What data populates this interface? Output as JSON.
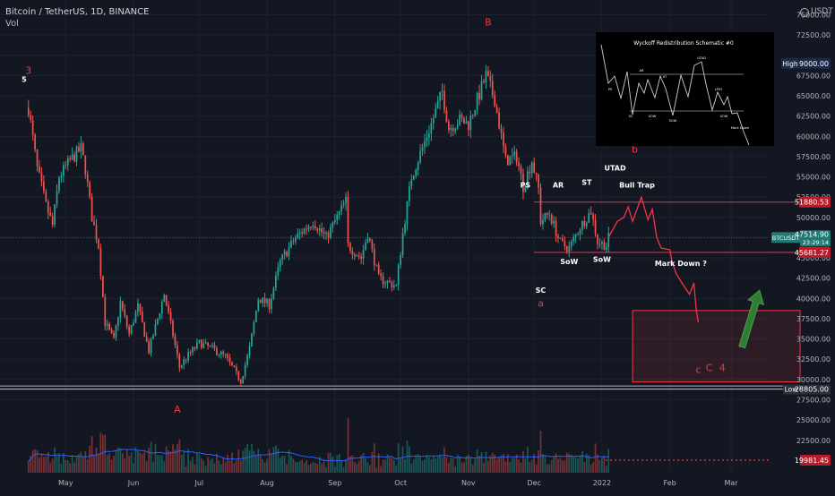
{
  "header": {
    "symbol_title": "Bitcoin / TetherUS, 1D, BINANCE",
    "vol_label": "Vol",
    "currency": "USDT"
  },
  "colors": {
    "background": "#131722",
    "grid": "#1e2230",
    "up": "#26a69a",
    "down": "#ef5350",
    "annotation_red": "#f23645",
    "box_fill": "rgba(242,54,69,0.12)",
    "arrow_green": "#2e7d32",
    "ma_line": "#2962ff",
    "axis_text": "#b2b5be"
  },
  "chart_data": {
    "type": "candlestick",
    "x_axis": {
      "ticks": [
        {
          "date": "2021-05-01",
          "label": "May"
        },
        {
          "date": "2021-06-01",
          "label": "Jun"
        },
        {
          "date": "2021-07-01",
          "label": "Jul"
        },
        {
          "date": "2021-08-01",
          "label": "Aug"
        },
        {
          "date": "2021-09-01",
          "label": "Sep"
        },
        {
          "date": "2021-10-01",
          "label": "Oct"
        },
        {
          "date": "2021-11-01",
          "label": "Nov"
        },
        {
          "date": "2021-12-01",
          "label": "Dec"
        },
        {
          "date": "2022-01-01",
          "label": "2022"
        },
        {
          "date": "2022-02-01",
          "label": "Feb"
        },
        {
          "date": "2022-03-01",
          "label": "Mar"
        }
      ]
    },
    "y_axis": {
      "ticks": [
        25000,
        27500,
        30000,
        32500,
        35000,
        37500,
        40000,
        42500,
        45000,
        47500,
        50000,
        52500,
        55000,
        57500,
        60000,
        62500,
        65000,
        67500,
        70000,
        72500,
        75000
      ],
      "tick_labels": [
        "25000.00",
        "27500.00",
        "30000.00",
        "32500.00",
        "35000.00",
        "37500.00",
        "40000.00",
        "42500.00",
        "45000.00",
        "47500.00",
        "50000.00",
        "52500.00",
        "55000.00",
        "57500.00",
        "60000.00",
        "62500.00",
        "65000.00",
        "67500.00",
        "70000.00",
        "72500.00",
        "75000.00"
      ]
    },
    "volume_axis": {
      "ticks": [
        22500,
        25000
      ],
      "tick_labels": [
        "22500.00",
        "25000.00"
      ]
    },
    "price_path": [
      {
        "date": "2021-04-14",
        "price": 63500
      },
      {
        "date": "2021-04-18",
        "price": 56000
      },
      {
        "date": "2021-04-22",
        "price": 51500
      },
      {
        "date": "2021-04-25",
        "price": 49000
      },
      {
        "date": "2021-04-28",
        "price": 55000
      },
      {
        "date": "2021-05-03",
        "price": 57000
      },
      {
        "date": "2021-05-08",
        "price": 58500
      },
      {
        "date": "2021-05-10",
        "price": 56000
      },
      {
        "date": "2021-05-13",
        "price": 50000
      },
      {
        "date": "2021-05-16",
        "price": 46500
      },
      {
        "date": "2021-05-19",
        "price": 37000
      },
      {
        "date": "2021-05-23",
        "price": 34800
      },
      {
        "date": "2021-05-26",
        "price": 39500
      },
      {
        "date": "2021-05-30",
        "price": 35600
      },
      {
        "date": "2021-06-03",
        "price": 39000
      },
      {
        "date": "2021-06-08",
        "price": 33500
      },
      {
        "date": "2021-06-12",
        "price": 37500
      },
      {
        "date": "2021-06-15",
        "price": 40500
      },
      {
        "date": "2021-06-19",
        "price": 35500
      },
      {
        "date": "2021-06-22",
        "price": 31500
      },
      {
        "date": "2021-06-26",
        "price": 33000
      },
      {
        "date": "2021-07-01",
        "price": 34500
      },
      {
        "date": "2021-07-07",
        "price": 33800
      },
      {
        "date": "2021-07-13",
        "price": 32800
      },
      {
        "date": "2021-07-20",
        "price": 29800
      },
      {
        "date": "2021-07-24",
        "price": 33800
      },
      {
        "date": "2021-07-28",
        "price": 40000
      },
      {
        "date": "2021-08-02",
        "price": 39200
      },
      {
        "date": "2021-08-07",
        "price": 44500
      },
      {
        "date": "2021-08-14",
        "price": 47500
      },
      {
        "date": "2021-08-22",
        "price": 49500
      },
      {
        "date": "2021-08-28",
        "price": 47500
      },
      {
        "date": "2021-09-06",
        "price": 52000
      },
      {
        "date": "2021-09-07",
        "price": 46500
      },
      {
        "date": "2021-09-13",
        "price": 45000
      },
      {
        "date": "2021-09-16",
        "price": 48000
      },
      {
        "date": "2021-09-21",
        "price": 42500
      },
      {
        "date": "2021-09-29",
        "price": 41500
      },
      {
        "date": "2021-10-02",
        "price": 48000
      },
      {
        "date": "2021-10-06",
        "price": 55000
      },
      {
        "date": "2021-10-15",
        "price": 61500
      },
      {
        "date": "2021-10-20",
        "price": 65500
      },
      {
        "date": "2021-10-23",
        "price": 61000
      },
      {
        "date": "2021-10-28",
        "price": 62000
      },
      {
        "date": "2021-11-01",
        "price": 61500
      },
      {
        "date": "2021-11-09",
        "price": 67500
      },
      {
        "date": "2021-11-13",
        "price": 64500
      },
      {
        "date": "2021-11-18",
        "price": 57000
      },
      {
        "date": "2021-11-23",
        "price": 57500
      },
      {
        "date": "2021-11-26",
        "price": 53800
      },
      {
        "date": "2021-11-30",
        "price": 57000
      },
      {
        "date": "2021-12-03",
        "price": 53500
      },
      {
        "date": "2021-12-04",
        "price": 49500
      },
      {
        "date": "2021-12-08",
        "price": 50500
      },
      {
        "date": "2021-12-13",
        "price": 46800
      },
      {
        "date": "2021-12-17",
        "price": 46200
      },
      {
        "date": "2021-12-22",
        "price": 48800
      },
      {
        "date": "2021-12-27",
        "price": 50800
      },
      {
        "date": "2021-12-30",
        "price": 47000
      },
      {
        "date": "2022-01-03",
        "price": 46500
      },
      {
        "date": "2022-01-04",
        "price": 47514.9
      }
    ],
    "projection_path": [
      {
        "date": "2022-01-04",
        "price": 47514.9
      },
      {
        "date": "2022-01-08",
        "price": 49500
      },
      {
        "date": "2022-01-11",
        "price": 50000
      },
      {
        "date": "2022-01-13",
        "price": 51300
      },
      {
        "date": "2022-01-15",
        "price": 49500
      },
      {
        "date": "2022-01-19",
        "price": 52500
      },
      {
        "date": "2022-01-22",
        "price": 49700
      },
      {
        "date": "2022-01-24",
        "price": 51000
      },
      {
        "date": "2022-01-26",
        "price": 47500
      },
      {
        "date": "2022-01-28",
        "price": 46200
      },
      {
        "date": "2022-02-01",
        "price": 46000
      },
      {
        "date": "2022-02-02",
        "price": 44500
      },
      {
        "date": "2022-02-04",
        "price": 43000
      },
      {
        "date": "2022-02-07",
        "price": 41700
      },
      {
        "date": "2022-02-10",
        "price": 40500
      },
      {
        "date": "2022-02-12",
        "price": 41900
      },
      {
        "date": "2022-02-13",
        "price": 38700
      },
      {
        "date": "2022-02-14",
        "price": 37000
      }
    ],
    "horizontal_lines": [
      {
        "price": 51880.53,
        "label": "51880.53",
        "color": "#f23645"
      },
      {
        "price": 45681.27,
        "label": "45681.27",
        "color": "#f23645"
      },
      {
        "price": 28805.0,
        "label": "Low",
        "value_label": "28805.00",
        "color": "#b2b5be"
      }
    ],
    "price_labels": {
      "high_label": "High",
      "high_value": "69000.00",
      "high_price": 69000,
      "current_symbol": "BTCUSDT",
      "current_value": "47514.90",
      "current_timer": "23:29:14",
      "current_price": 47514.9,
      "volume_value": "19981.45"
    },
    "target_box": {
      "date_start": "2022-01-15",
      "date_end": "2022-04-02",
      "price_top": 38500,
      "price_bottom": 29700
    },
    "annotations": [
      {
        "text": "3",
        "date": "2021-04-14",
        "price": 67700,
        "color": "#f23645"
      },
      {
        "text": "5",
        "date": "2021-04-12",
        "price": 66700,
        "color": "#ffffff"
      },
      {
        "text": "B",
        "date": "2021-11-10",
        "price": 73700,
        "color": "#f23645"
      },
      {
        "text": "PS",
        "date": "2021-11-27",
        "price": 53700,
        "color": "#ffffff"
      },
      {
        "text": "AR",
        "date": "2021-12-12",
        "price": 53700,
        "color": "#ffffff"
      },
      {
        "text": "ST",
        "date": "2021-12-25",
        "price": 54000,
        "color": "#ffffff"
      },
      {
        "text": "UTAD",
        "date": "2022-01-07",
        "price": 55800,
        "color": "#ffffff"
      },
      {
        "text": "Bull Trap",
        "date": "2022-01-17",
        "price": 53700,
        "color": "#ffffff"
      },
      {
        "text": "b",
        "date": "2022-01-16",
        "price": 58000,
        "color": "#f23645"
      },
      {
        "text": "SoW",
        "date": "2021-12-17",
        "price": 44200,
        "color": "#ffffff"
      },
      {
        "text": "SoW",
        "date": "2022-01-01",
        "price": 44500,
        "color": "#ffffff"
      },
      {
        "text": "Mark Down ?",
        "date": "2022-02-06",
        "price": 44000,
        "color": "#ffffff"
      },
      {
        "text": "SC",
        "date": "2021-12-04",
        "price": 40700,
        "color": "#ffffff"
      },
      {
        "text": "a",
        "date": "2021-12-04",
        "price": 39000,
        "color": "#f23645"
      },
      {
        "text": "A",
        "date": "2021-06-21",
        "price": 25900,
        "color": "#f23645"
      },
      {
        "text": "c",
        "date": "2022-02-14",
        "price": 30800,
        "color": "#f23645"
      },
      {
        "text": "C",
        "date": "2022-02-19",
        "price": 31000,
        "color": "#f23645"
      },
      {
        "text": "4",
        "date": "2022-02-25",
        "price": 31000,
        "color": "#f23645"
      }
    ],
    "trend_arrow": {
      "from_date": "2022-03-06",
      "from_price": 34000,
      "to_date": "2022-03-14",
      "to_price": 41000
    }
  },
  "inset": {
    "title": "Wyckoff Redistribution Schematic #0",
    "labels": [
      "PS",
      "AR",
      "ST",
      "UTAD",
      "LPSY",
      "SC",
      "SOW",
      "SOW",
      "SOW",
      "Mark Down"
    ]
  }
}
